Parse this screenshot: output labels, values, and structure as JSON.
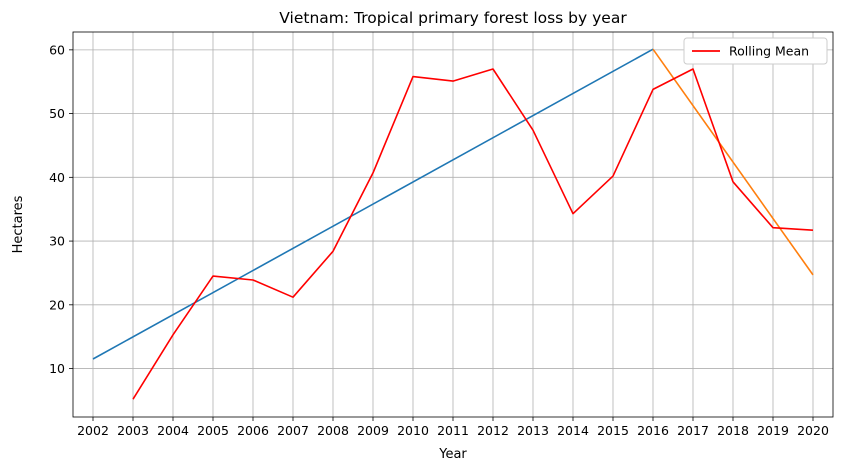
{
  "chart_data": {
    "type": "line",
    "title": "Vietnam: Tropical primary forest loss by year",
    "xlabel": "Year",
    "ylabel": "Hectares",
    "x": [
      2002,
      2003,
      2004,
      2005,
      2006,
      2007,
      2008,
      2009,
      2010,
      2011,
      2012,
      2013,
      2014,
      2015,
      2016,
      2017,
      2018,
      2019,
      2020
    ],
    "xlim": [
      2001.5,
      2020.5
    ],
    "ylim": [
      2.4,
      62.8
    ],
    "yticks": [
      10,
      20,
      30,
      40,
      50,
      60
    ],
    "grid": true,
    "legend_position": "top-right",
    "series": [
      {
        "name": "Rolling Mean",
        "color": "#ff0000",
        "points": [
          [
            2003,
            5.2
          ],
          [
            2004,
            15.3
          ],
          [
            2005,
            24.5
          ],
          [
            2006,
            23.9
          ],
          [
            2007,
            21.2
          ],
          [
            2008,
            28.4
          ],
          [
            2009,
            40.7
          ],
          [
            2010,
            55.8
          ],
          [
            2011,
            55.1
          ],
          [
            2012,
            57.0
          ],
          [
            2013,
            47.4
          ],
          [
            2014,
            34.3
          ],
          [
            2015,
            40.2
          ],
          [
            2016,
            53.8
          ],
          [
            2017,
            57.0
          ],
          [
            2018,
            39.3
          ],
          [
            2019,
            32.1
          ],
          [
            2020,
            31.7
          ]
        ]
      },
      {
        "color": "#1f77b4",
        "points": [
          [
            2002,
            11.5
          ],
          [
            2016,
            60.1
          ]
        ]
      },
      {
        "color": "#ff7f0e",
        "points": [
          [
            2016,
            60.1
          ],
          [
            2020,
            24.7
          ]
        ]
      }
    ]
  }
}
